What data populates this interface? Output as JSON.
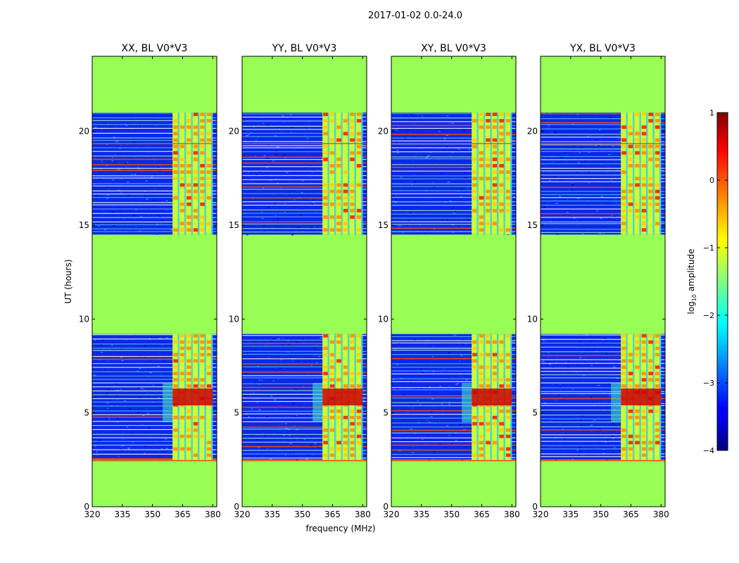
{
  "figure": {
    "suptitle": "2017-01-02 0.0-24.0"
  },
  "colors": {
    "flagged": "#99ff55",
    "background": "#ffffff",
    "axes": "#000000"
  },
  "chart_data": {
    "type": "heatmap",
    "xlabel": "frequency (MHz)",
    "ylabel": "UT (hours)",
    "xlim": [
      320,
      382
    ],
    "ylim": [
      0,
      24
    ],
    "xticks": [
      320,
      335,
      350,
      365,
      380
    ],
    "yticks": [
      0,
      5,
      10,
      15,
      20
    ],
    "panels": [
      {
        "title": "XX, BL V0*V3"
      },
      {
        "title": "YY, BL V0*V3"
      },
      {
        "title": "XY, BL V0*V3"
      },
      {
        "title": "YX, BL V0*V3"
      }
    ],
    "flagged_regions_hours": [
      [
        0,
        2.4
      ],
      [
        9.2,
        14.5
      ],
      [
        21.0,
        24.0
      ]
    ],
    "observed_blocks_hours": [
      [
        2.5,
        9.2
      ],
      [
        14.5,
        21.0
      ]
    ],
    "strong_band_mhz": [
      360,
      380
    ],
    "colorbar": {
      "label": "log10 amplitude",
      "range": [
        -4,
        1
      ],
      "ticks": [
        1,
        0,
        -1,
        -2,
        -3,
        -4
      ],
      "colormap": "jet"
    }
  }
}
